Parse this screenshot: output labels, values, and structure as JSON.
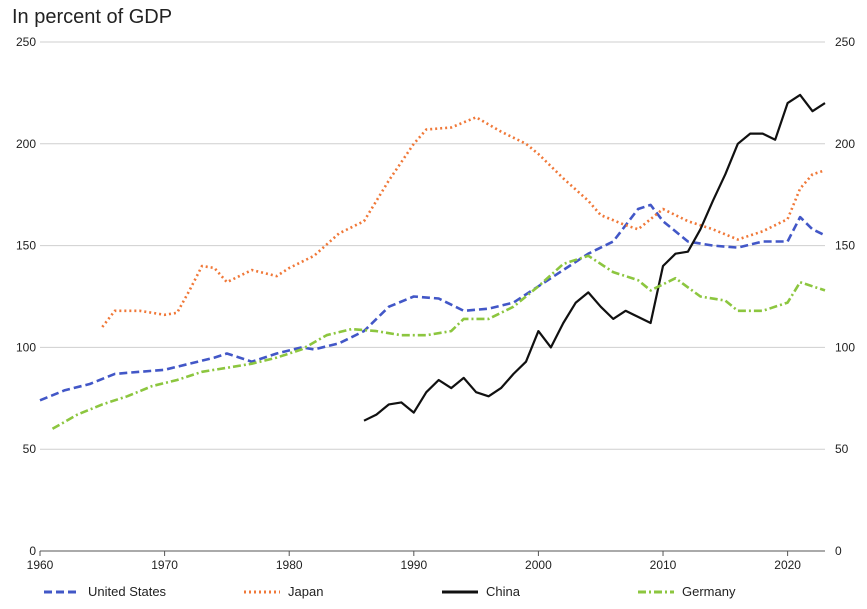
{
  "chart_data": {
    "type": "line",
    "title": "In percent of GDP",
    "xlim": [
      1960,
      2023
    ],
    "ylim": [
      0,
      250
    ],
    "x_ticks": [
      1960,
      1970,
      1980,
      1990,
      2000,
      2010,
      2020
    ],
    "y_ticks": [
      0,
      50,
      100,
      150,
      200,
      250
    ],
    "grid": true,
    "legend": "bottom",
    "series": [
      {
        "name": "United States",
        "color": "#4257c7",
        "style": "dashed",
        "points": [
          [
            1960,
            74
          ],
          [
            1962,
            79
          ],
          [
            1964,
            82
          ],
          [
            1966,
            87
          ],
          [
            1968,
            88
          ],
          [
            1970,
            89
          ],
          [
            1972,
            92
          ],
          [
            1974,
            95
          ],
          [
            1975,
            97
          ],
          [
            1977,
            93
          ],
          [
            1979,
            97
          ],
          [
            1981,
            100
          ],
          [
            1982,
            99
          ],
          [
            1984,
            102
          ],
          [
            1986,
            108
          ],
          [
            1988,
            120
          ],
          [
            1990,
            125
          ],
          [
            1992,
            124
          ],
          [
            1994,
            118
          ],
          [
            1996,
            119
          ],
          [
            1998,
            122
          ],
          [
            2000,
            130
          ],
          [
            2002,
            138
          ],
          [
            2004,
            146
          ],
          [
            2006,
            152
          ],
          [
            2008,
            168
          ],
          [
            2009,
            170
          ],
          [
            2010,
            162
          ],
          [
            2012,
            152
          ],
          [
            2014,
            150
          ],
          [
            2016,
            149
          ],
          [
            2018,
            152
          ],
          [
            2020,
            152
          ],
          [
            2021,
            164
          ],
          [
            2022,
            158
          ],
          [
            2023,
            155
          ]
        ]
      },
      {
        "name": "Japan",
        "color": "#f07838",
        "style": "dotted",
        "points": [
          [
            1965,
            110
          ],
          [
            1966,
            118
          ],
          [
            1968,
            118
          ],
          [
            1970,
            116
          ],
          [
            1971,
            117
          ],
          [
            1972,
            128
          ],
          [
            1973,
            140
          ],
          [
            1974,
            139
          ],
          [
            1975,
            132
          ],
          [
            1977,
            138
          ],
          [
            1979,
            135
          ],
          [
            1980,
            139
          ],
          [
            1982,
            145
          ],
          [
            1984,
            156
          ],
          [
            1986,
            162
          ],
          [
            1988,
            182
          ],
          [
            1990,
            200
          ],
          [
            1991,
            207
          ],
          [
            1993,
            208
          ],
          [
            1995,
            213
          ],
          [
            1997,
            206
          ],
          [
            1999,
            200
          ],
          [
            2000,
            195
          ],
          [
            2002,
            183
          ],
          [
            2004,
            172
          ],
          [
            2005,
            165
          ],
          [
            2007,
            160
          ],
          [
            2008,
            158
          ],
          [
            2009,
            163
          ],
          [
            2010,
            168
          ],
          [
            2012,
            162
          ],
          [
            2014,
            158
          ],
          [
            2016,
            153
          ],
          [
            2018,
            157
          ],
          [
            2020,
            163
          ],
          [
            2021,
            178
          ],
          [
            2022,
            185
          ],
          [
            2023,
            187
          ]
        ]
      },
      {
        "name": "China",
        "color": "#111111",
        "style": "solid",
        "points": [
          [
            1986,
            64
          ],
          [
            1987,
            67
          ],
          [
            1988,
            72
          ],
          [
            1989,
            73
          ],
          [
            1990,
            68
          ],
          [
            1991,
            78
          ],
          [
            1992,
            84
          ],
          [
            1993,
            80
          ],
          [
            1994,
            85
          ],
          [
            1995,
            78
          ],
          [
            1996,
            76
          ],
          [
            1997,
            80
          ],
          [
            1998,
            87
          ],
          [
            1999,
            93
          ],
          [
            2000,
            108
          ],
          [
            2001,
            100
          ],
          [
            2002,
            112
          ],
          [
            2003,
            122
          ],
          [
            2004,
            127
          ],
          [
            2005,
            120
          ],
          [
            2006,
            114
          ],
          [
            2007,
            118
          ],
          [
            2008,
            115
          ],
          [
            2009,
            112
          ],
          [
            2010,
            140
          ],
          [
            2011,
            146
          ],
          [
            2012,
            147
          ],
          [
            2013,
            158
          ],
          [
            2014,
            172
          ],
          [
            2015,
            185
          ],
          [
            2016,
            200
          ],
          [
            2017,
            205
          ],
          [
            2018,
            205
          ],
          [
            2019,
            202
          ],
          [
            2020,
            220
          ],
          [
            2021,
            224
          ],
          [
            2022,
            216
          ],
          [
            2023,
            220
          ]
        ]
      },
      {
        "name": "Germany",
        "color": "#8cc63f",
        "style": "dash-dot",
        "points": [
          [
            1961,
            60
          ],
          [
            1963,
            67
          ],
          [
            1965,
            72
          ],
          [
            1967,
            76
          ],
          [
            1969,
            81
          ],
          [
            1971,
            84
          ],
          [
            1973,
            88
          ],
          [
            1975,
            90
          ],
          [
            1977,
            92
          ],
          [
            1979,
            95
          ],
          [
            1981,
            99
          ],
          [
            1983,
            106
          ],
          [
            1985,
            109
          ],
          [
            1987,
            108
          ],
          [
            1989,
            106
          ],
          [
            1991,
            106
          ],
          [
            1993,
            108
          ],
          [
            1994,
            114
          ],
          [
            1996,
            114
          ],
          [
            1998,
            120
          ],
          [
            2000,
            130
          ],
          [
            2002,
            141
          ],
          [
            2004,
            145
          ],
          [
            2006,
            137
          ],
          [
            2008,
            133
          ],
          [
            2009,
            128
          ],
          [
            2011,
            134
          ],
          [
            2013,
            125
          ],
          [
            2015,
            123
          ],
          [
            2016,
            118
          ],
          [
            2018,
            118
          ],
          [
            2020,
            122
          ],
          [
            2021,
            132
          ],
          [
            2022,
            130
          ],
          [
            2023,
            128
          ]
        ]
      }
    ]
  }
}
